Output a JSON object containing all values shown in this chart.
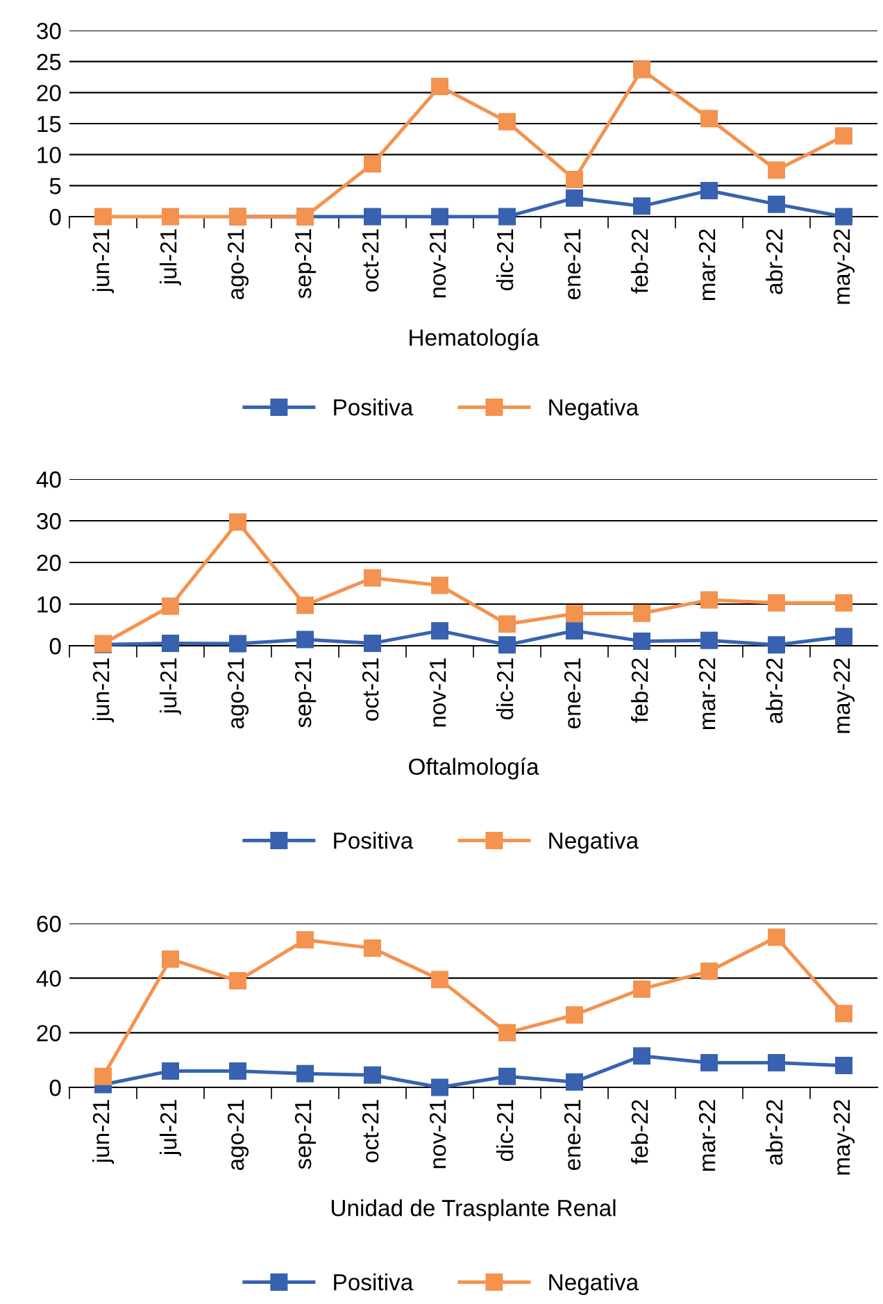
{
  "chart_data": [
    {
      "type": "line",
      "xlabel": "Hematología",
      "categories": [
        "jun-21",
        "jul-21",
        "ago-21",
        "sep-21",
        "oct-21",
        "nov-21",
        "dic-21",
        "ene-21",
        "feb-22",
        "mar-22",
        "abr-22",
        "may-22"
      ],
      "ylim": [
        0,
        30
      ],
      "yticks": [
        0,
        5,
        10,
        15,
        20,
        25,
        30
      ],
      "grid": "y",
      "legend": "bottom",
      "marker": "square",
      "line_style": "solid",
      "series": [
        {
          "name": "Positiva",
          "color": "#3862b0",
          "values": [
            null,
            null,
            0,
            0,
            0,
            0,
            0,
            3,
            1.7,
            4.2,
            2,
            0
          ]
        },
        {
          "name": "Negativa",
          "color": "#f4924f",
          "values": [
            0,
            0,
            0,
            0,
            8.5,
            21,
            15.3,
            6,
            23.7,
            15.8,
            7.5,
            13
          ]
        }
      ]
    },
    {
      "type": "line",
      "xlabel": "Oftalmología",
      "categories": [
        "jun-21",
        "jul-21",
        "ago-21",
        "sep-21",
        "oct-21",
        "nov-21",
        "dic-21",
        "ene-21",
        "feb-22",
        "mar-22",
        "abr-22",
        "may-22"
      ],
      "ylim": [
        0,
        40
      ],
      "yticks": [
        0,
        10,
        20,
        30,
        40
      ],
      "grid": "y",
      "legend": "bottom",
      "marker": "square",
      "line_style": "solid",
      "series": [
        {
          "name": "Positiva",
          "color": "#3862b0",
          "values": [
            0.3,
            0.6,
            0.5,
            1.5,
            0.6,
            3.6,
            0.2,
            3.6,
            1.1,
            1.3,
            0.2,
            2.2
          ]
        },
        {
          "name": "Negativa",
          "color": "#f4924f",
          "values": [
            0.5,
            9.5,
            29.7,
            9.7,
            16.3,
            14.5,
            5.2,
            7.7,
            7.8,
            11,
            10.3,
            10.3
          ]
        }
      ]
    },
    {
      "type": "line",
      "xlabel": "Unidad de Trasplante Renal",
      "categories": [
        "jun-21",
        "jul-21",
        "ago-21",
        "sep-21",
        "oct-21",
        "nov-21",
        "dic-21",
        "ene-21",
        "feb-22",
        "mar-22",
        "abr-22",
        "may-22"
      ],
      "ylim": [
        0,
        60
      ],
      "yticks": [
        0,
        20,
        40,
        60
      ],
      "grid": "y",
      "legend": "bottom",
      "marker": "square",
      "line_style": "solid",
      "series": [
        {
          "name": "Positiva",
          "color": "#3862b0",
          "values": [
            1,
            6,
            6,
            5,
            4.5,
            0,
            4,
            2,
            11.5,
            9,
            9,
            8
          ]
        },
        {
          "name": "Negativa",
          "color": "#f4924f",
          "values": [
            4,
            47,
            39,
            54,
            51,
            39.5,
            20,
            26.5,
            36,
            42.5,
            55,
            27
          ]
        }
      ]
    }
  ]
}
